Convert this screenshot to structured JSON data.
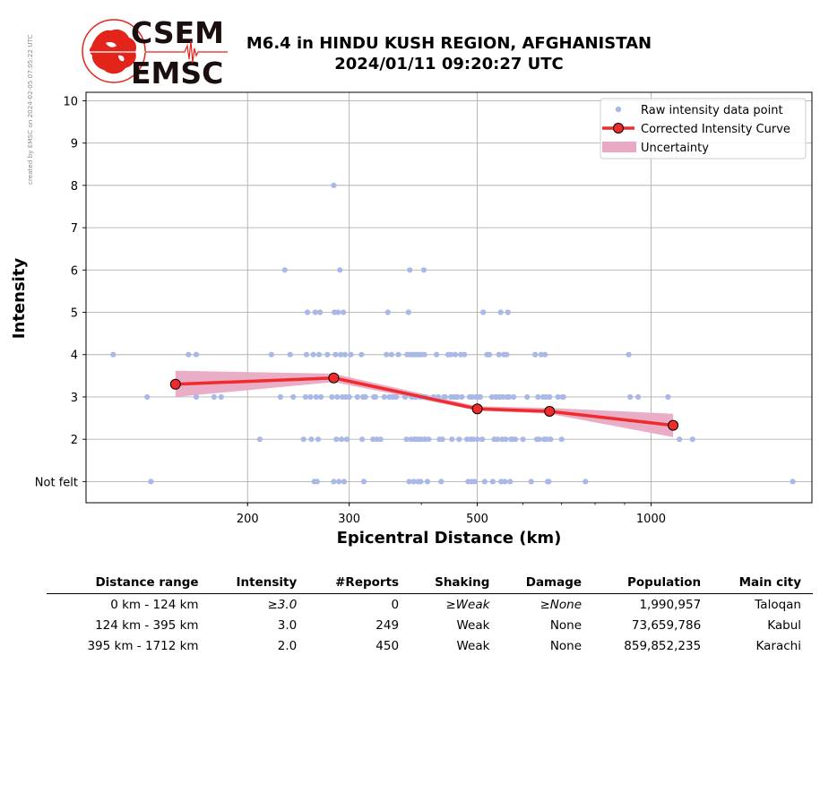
{
  "watermark": "created by EMSC on 2024-02-05 07:05:22 UTC",
  "logo": {
    "line1": "CSEM",
    "line2": "EMSC",
    "colors": {
      "globe": "#e3241b",
      "text": "#1a0e0e"
    }
  },
  "header": {
    "title": "M6.4 in HINDU KUSH REGION, AFGHANISTAN",
    "subtitle": "2024/01/11 09:20:27 UTC"
  },
  "chart_data": {
    "type": "scatter",
    "xlabel": "Epicentral Distance (km)",
    "ylabel": "Intensity",
    "xscale": "log",
    "xlim": [
      105,
      1900
    ],
    "ylim": [
      0.5,
      10.2
    ],
    "xticks": [
      200,
      300,
      500,
      1000
    ],
    "yticks": [
      1,
      2,
      3,
      4,
      5,
      6,
      7,
      8,
      9,
      10
    ],
    "ytick_labels": [
      "Not felt",
      "2",
      "3",
      "4",
      "5",
      "6",
      "7",
      "8",
      "9",
      "10"
    ],
    "grid": true,
    "legend": {
      "position": "top-right",
      "entries": [
        "Raw intensity data point",
        "Corrected Intensity Curve",
        "Uncertainty"
      ]
    },
    "colors": {
      "raw": "#aab8e8",
      "curve": "#ef2b2b",
      "uncertainty": "#e8a9c4",
      "grid": "#b0b0b0"
    },
    "series": [
      {
        "name": "Raw intensity data point",
        "kind": "scatter",
        "points": [
          [
            117,
            4
          ],
          [
            134,
            3
          ],
          [
            136,
            1
          ],
          [
            158,
            4
          ],
          [
            163,
            3
          ],
          [
            163,
            4
          ],
          [
            175,
            3
          ],
          [
            180,
            3
          ],
          [
            210,
            2
          ],
          [
            220,
            4
          ],
          [
            228,
            3
          ],
          [
            232,
            6
          ],
          [
            237,
            4
          ],
          [
            240,
            3
          ],
          [
            250,
            2
          ],
          [
            252,
            3
          ],
          [
            253,
            4
          ],
          [
            254,
            5
          ],
          [
            257,
            3
          ],
          [
            258,
            2
          ],
          [
            260,
            4
          ],
          [
            261,
            1
          ],
          [
            262,
            5
          ],
          [
            263,
            3
          ],
          [
            264,
            1
          ],
          [
            265,
            2
          ],
          [
            266,
            4
          ],
          [
            267,
            5
          ],
          [
            268,
            3
          ],
          [
            275,
            4
          ],
          [
            280,
            3
          ],
          [
            282,
            8
          ],
          [
            282,
            1
          ],
          [
            283,
            5
          ],
          [
            284,
            4
          ],
          [
            285,
            2
          ],
          [
            286,
            3
          ],
          [
            287,
            5
          ],
          [
            288,
            1
          ],
          [
            289,
            6
          ],
          [
            290,
            4
          ],
          [
            291,
            2
          ],
          [
            292,
            3
          ],
          [
            293,
            5
          ],
          [
            294,
            1
          ],
          [
            295,
            4
          ],
          [
            296,
            3
          ],
          [
            297,
            2
          ],
          [
            300,
            3
          ],
          [
            302,
            4
          ],
          [
            310,
            3
          ],
          [
            315,
            4
          ],
          [
            316,
            2
          ],
          [
            317,
            3
          ],
          [
            318,
            1
          ],
          [
            320,
            3
          ],
          [
            330,
            2
          ],
          [
            331,
            3
          ],
          [
            333,
            3
          ],
          [
            335,
            2
          ],
          [
            340,
            2
          ],
          [
            345,
            3
          ],
          [
            348,
            4
          ],
          [
            350,
            5
          ],
          [
            352,
            3
          ],
          [
            355,
            4
          ],
          [
            356,
            3
          ],
          [
            360,
            3
          ],
          [
            362,
            3
          ],
          [
            365,
            4
          ],
          [
            375,
            3
          ],
          [
            377,
            2
          ],
          [
            378,
            4
          ],
          [
            380,
            5
          ],
          [
            381,
            1
          ],
          [
            382,
            6
          ],
          [
            383,
            4
          ],
          [
            384,
            2
          ],
          [
            385,
            3
          ],
          [
            387,
            4
          ],
          [
            388,
            1
          ],
          [
            389,
            2
          ],
          [
            390,
            4
          ],
          [
            391,
            3
          ],
          [
            392,
            2
          ],
          [
            393,
            4
          ],
          [
            395,
            1
          ],
          [
            396,
            4
          ],
          [
            397,
            2
          ],
          [
            398,
            3
          ],
          [
            399,
            1
          ],
          [
            400,
            4
          ],
          [
            401,
            2
          ],
          [
            402,
            3
          ],
          [
            404,
            6
          ],
          [
            405,
            4
          ],
          [
            406,
            2
          ],
          [
            407,
            3
          ],
          [
            410,
            1
          ],
          [
            412,
            2
          ],
          [
            420,
            3
          ],
          [
            425,
            4
          ],
          [
            428,
            3
          ],
          [
            430,
            2
          ],
          [
            433,
            1
          ],
          [
            435,
            2
          ],
          [
            438,
            3
          ],
          [
            440,
            3
          ],
          [
            445,
            4
          ],
          [
            450,
            3
          ],
          [
            450,
            4
          ],
          [
            452,
            2
          ],
          [
            455,
            3
          ],
          [
            458,
            4
          ],
          [
            460,
            3
          ],
          [
            462,
            3
          ],
          [
            465,
            2
          ],
          [
            468,
            4
          ],
          [
            470,
            3
          ],
          [
            475,
            4
          ],
          [
            480,
            2
          ],
          [
            482,
            1
          ],
          [
            485,
            3
          ],
          [
            487,
            2
          ],
          [
            489,
            1
          ],
          [
            490,
            3
          ],
          [
            492,
            2
          ],
          [
            495,
            1
          ],
          [
            497,
            3
          ],
          [
            500,
            2
          ],
          [
            503,
            3
          ],
          [
            506,
            3
          ],
          [
            510,
            2
          ],
          [
            512,
            5
          ],
          [
            515,
            1
          ],
          [
            520,
            4
          ],
          [
            525,
            4
          ],
          [
            530,
            3
          ],
          [
            532,
            1
          ],
          [
            535,
            2
          ],
          [
            538,
            3
          ],
          [
            540,
            3
          ],
          [
            542,
            2
          ],
          [
            545,
            4
          ],
          [
            547,
            3
          ],
          [
            549,
            5
          ],
          [
            550,
            1
          ],
          [
            552,
            2
          ],
          [
            554,
            3
          ],
          [
            556,
            4
          ],
          [
            558,
            1
          ],
          [
            560,
            2
          ],
          [
            562,
            4
          ],
          [
            563,
            3
          ],
          [
            565,
            5
          ],
          [
            568,
            3
          ],
          [
            570,
            1
          ],
          [
            572,
            2
          ],
          [
            575,
            2
          ],
          [
            578,
            3
          ],
          [
            582,
            2
          ],
          [
            600,
            2
          ],
          [
            610,
            3
          ],
          [
            620,
            1
          ],
          [
            630,
            4
          ],
          [
            634,
            2
          ],
          [
            637,
            3
          ],
          [
            640,
            2
          ],
          [
            645,
            4
          ],
          [
            650,
            3
          ],
          [
            653,
            2
          ],
          [
            655,
            4
          ],
          [
            658,
            3
          ],
          [
            660,
            2
          ],
          [
            662,
            1
          ],
          [
            665,
            1
          ],
          [
            667,
            3
          ],
          [
            670,
            2
          ],
          [
            690,
            3
          ],
          [
            700,
            2
          ],
          [
            703,
            3
          ],
          [
            705,
            3
          ],
          [
            770,
            1
          ],
          [
            915,
            4
          ],
          [
            920,
            3
          ],
          [
            950,
            3
          ],
          [
            1070,
            3
          ],
          [
            1120,
            2
          ],
          [
            1180,
            2
          ],
          [
            1760,
            1
          ]
        ]
      },
      {
        "name": "Corrected Intensity Curve",
        "kind": "line",
        "x": [
          150,
          282,
          500,
          667,
          1092
        ],
        "y": [
          3.3,
          3.45,
          2.72,
          2.66,
          2.33
        ]
      },
      {
        "name": "Uncertainty",
        "kind": "band",
        "x": [
          150,
          282,
          500,
          667,
          1092
        ],
        "lower": [
          3.0,
          3.35,
          2.68,
          2.6,
          2.05
        ],
        "upper": [
          3.62,
          3.55,
          2.78,
          2.74,
          2.6
        ]
      }
    ]
  },
  "summary_table": {
    "columns": [
      "Distance range",
      "Intensity",
      "#Reports",
      "Shaking",
      "Damage",
      "Population",
      "Main city"
    ],
    "rows": [
      [
        "0 km -  124 km",
        "≥3.0",
        "0",
        "≥Weak",
        "≥None",
        "1,990,957",
        "Taloqan"
      ],
      [
        "124 km -  395 km",
        "3.0",
        "249",
        "Weak",
        "None",
        "73,659,786",
        "Kabul"
      ],
      [
        "395 km - 1712 km",
        "2.0",
        "450",
        "Weak",
        "None",
        "859,852,235",
        "Karachi"
      ]
    ]
  }
}
